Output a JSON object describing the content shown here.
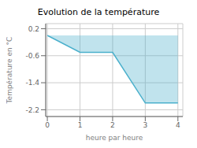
{
  "chart_data": {
    "type": "area",
    "title": "Evolution de la température",
    "xlabel": "heure par heure",
    "ylabel": "Température en °C",
    "x": [
      0,
      1,
      2,
      3,
      4
    ],
    "values": [
      0.0,
      -0.5,
      -0.5,
      -2.0,
      -2.0
    ],
    "color": "#4ab0cc",
    "xlim": [
      -0.05,
      4.15
    ],
    "ylim": [
      -2.4,
      0.35
    ],
    "xticks": [
      0,
      1,
      2,
      3,
      4
    ],
    "yticks": [
      0.2,
      -0.6,
      -1.4,
      -2.2
    ],
    "grid": true
  }
}
